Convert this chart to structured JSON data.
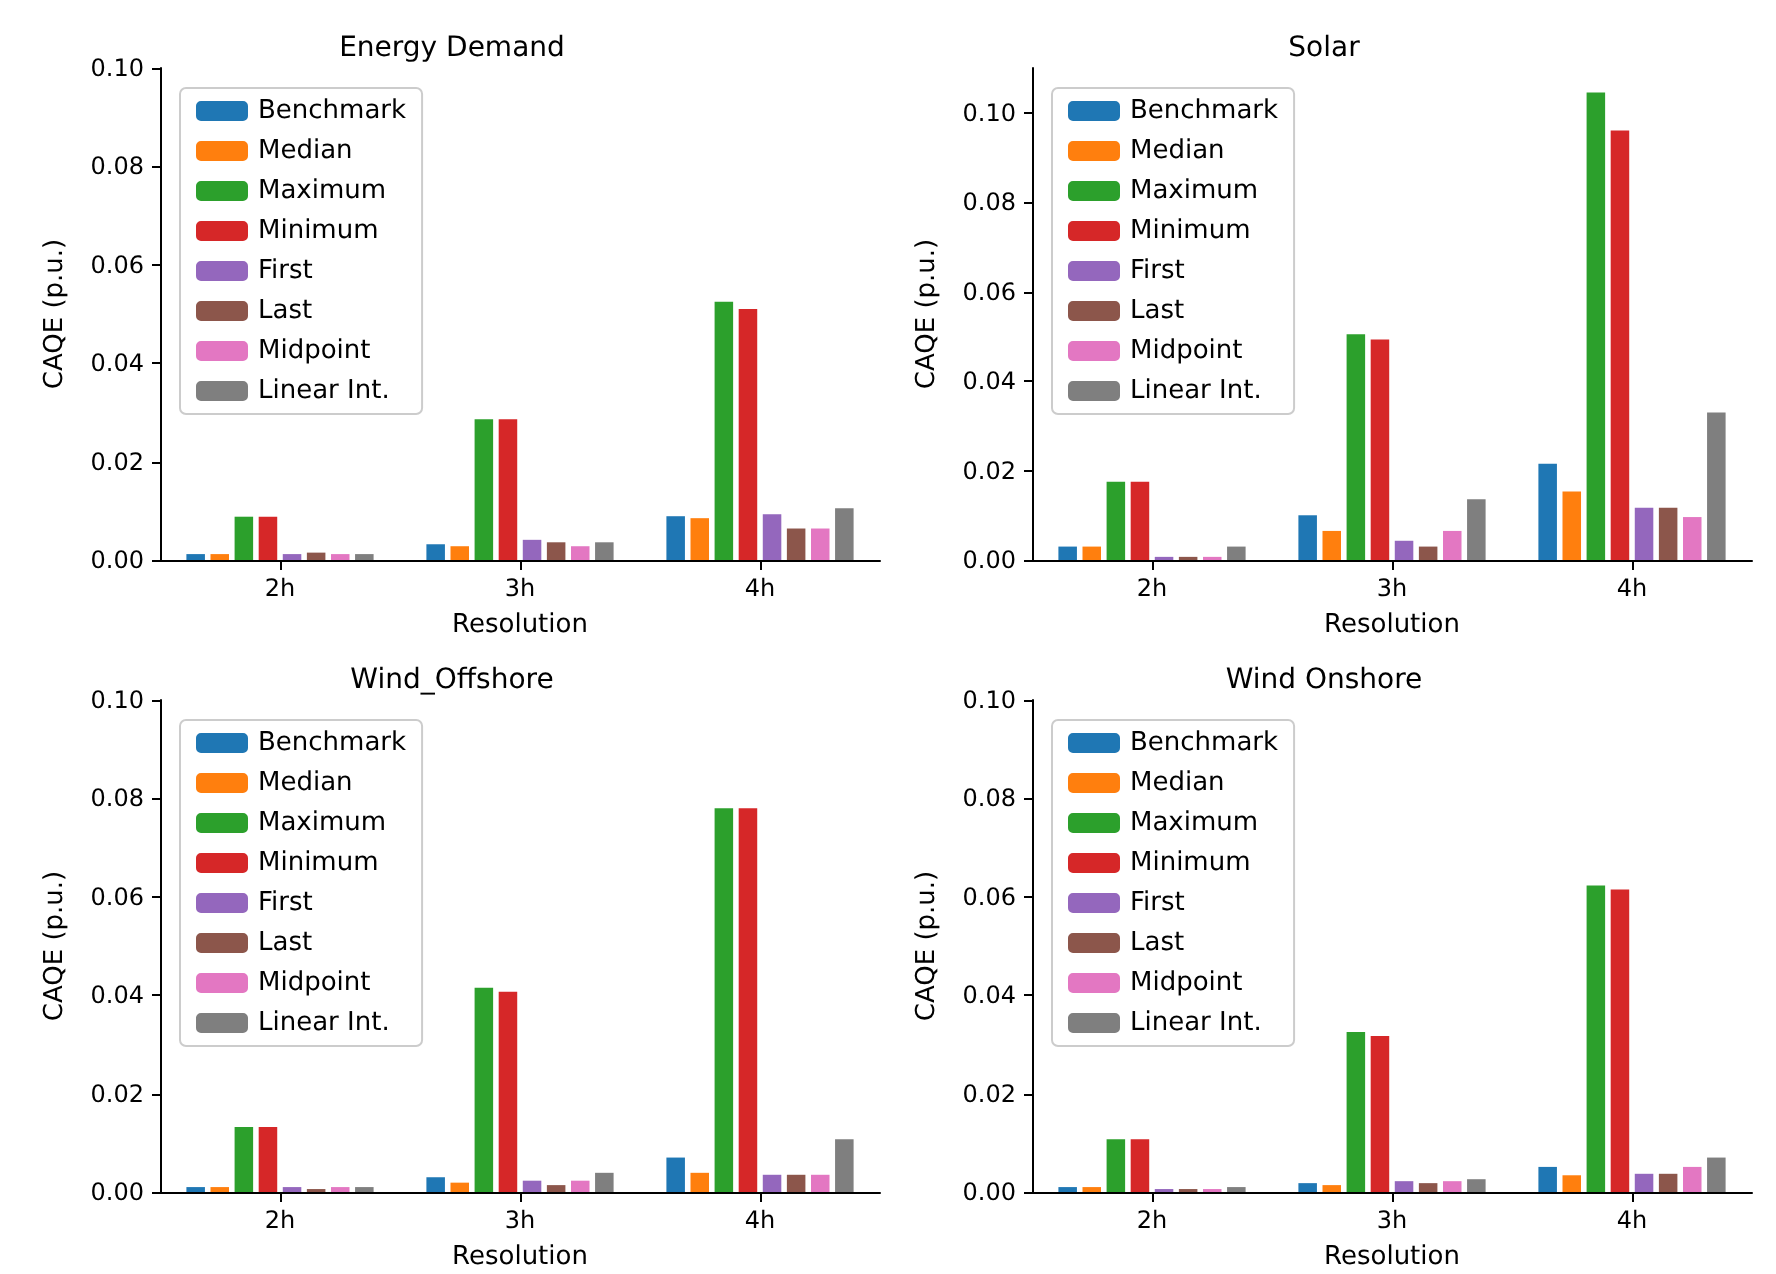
{
  "chart_data": [
    {
      "type": "bar",
      "title": "Energy Demand",
      "xlabel": "Resolution",
      "ylabel": "CAQE (p.u.)",
      "categories": [
        "2h",
        "3h",
        "4h"
      ],
      "ylim": [
        0,
        0.1
      ],
      "yticks": [
        {
          "value": 0,
          "label": "0.00"
        },
        {
          "value": 0.02,
          "label": "0.02"
        },
        {
          "value": 0.04,
          "label": "0.04"
        },
        {
          "value": 0.06,
          "label": "0.06"
        },
        {
          "value": 0.08,
          "label": "0.08"
        },
        {
          "value": 0.1,
          "label": "0.10"
        }
      ],
      "grid": false,
      "legend": "top left",
      "series": [
        {
          "name": "Benchmark",
          "color": "#1f77b4",
          "values": [
            0.0012,
            0.0032,
            0.0089
          ]
        },
        {
          "name": "Median",
          "color": "#ff7f0e",
          "values": [
            0.0012,
            0.0028,
            0.0085
          ]
        },
        {
          "name": "Maximum",
          "color": "#2ca02c",
          "values": [
            0.0088,
            0.0286,
            0.0525
          ]
        },
        {
          "name": "Minimum",
          "color": "#d62728",
          "values": [
            0.0088,
            0.0286,
            0.051
          ]
        },
        {
          "name": "First",
          "color": "#9467bd",
          "values": [
            0.0012,
            0.0041,
            0.0093
          ]
        },
        {
          "name": "Last",
          "color": "#8c564b",
          "values": [
            0.0015,
            0.0036,
            0.0064
          ]
        },
        {
          "name": "Midpoint",
          "color": "#e377c2",
          "values": [
            0.0012,
            0.0028,
            0.0064
          ]
        },
        {
          "name": "Linear Int.",
          "color": "#7f7f7f",
          "values": [
            0.0012,
            0.0036,
            0.0105
          ]
        }
      ]
    },
    {
      "type": "bar",
      "title": "Solar",
      "xlabel": "Resolution",
      "ylabel": "CAQE (p.u.)",
      "categories": [
        "2h",
        "3h",
        "4h"
      ],
      "ylim": [
        0,
        0.11
      ],
      "yticks": [
        {
          "value": 0,
          "label": "0.00"
        },
        {
          "value": 0.02,
          "label": "0.02"
        },
        {
          "value": 0.04,
          "label": "0.04"
        },
        {
          "value": 0.06,
          "label": "0.06"
        },
        {
          "value": 0.08,
          "label": "0.08"
        },
        {
          "value": 0.1,
          "label": "0.10"
        }
      ],
      "grid": false,
      "legend": "top left",
      "series": [
        {
          "name": "Benchmark",
          "color": "#1f77b4",
          "values": [
            0.003,
            0.01,
            0.0215
          ]
        },
        {
          "name": "Median",
          "color": "#ff7f0e",
          "values": [
            0.003,
            0.0065,
            0.0153
          ]
        },
        {
          "name": "Maximum",
          "color": "#2ca02c",
          "values": [
            0.0175,
            0.0505,
            0.1045
          ]
        },
        {
          "name": "Minimum",
          "color": "#d62728",
          "values": [
            0.0175,
            0.0493,
            0.096
          ]
        },
        {
          "name": "First",
          "color": "#9467bd",
          "values": [
            0.0007,
            0.0043,
            0.0117
          ]
        },
        {
          "name": "Last",
          "color": "#8c564b",
          "values": [
            0.0007,
            0.003,
            0.0117
          ]
        },
        {
          "name": "Midpoint",
          "color": "#e377c2",
          "values": [
            0.0007,
            0.0065,
            0.0096
          ]
        },
        {
          "name": "Linear Int.",
          "color": "#7f7f7f",
          "values": [
            0.003,
            0.0136,
            0.033
          ]
        }
      ]
    },
    {
      "type": "bar",
      "title": "Wind_Offshore",
      "xlabel": "Resolution",
      "ylabel": "CAQE (p.u.)",
      "categories": [
        "2h",
        "3h",
        "4h"
      ],
      "ylim": [
        0,
        0.1
      ],
      "yticks": [
        {
          "value": 0,
          "label": "0.00"
        },
        {
          "value": 0.02,
          "label": "0.02"
        },
        {
          "value": 0.04,
          "label": "0.04"
        },
        {
          "value": 0.06,
          "label": "0.06"
        },
        {
          "value": 0.08,
          "label": "0.08"
        },
        {
          "value": 0.1,
          "label": "0.10"
        }
      ],
      "grid": false,
      "legend": "top left",
      "series": [
        {
          "name": "Benchmark",
          "color": "#1f77b4",
          "values": [
            0.001,
            0.003,
            0.007
          ]
        },
        {
          "name": "Median",
          "color": "#ff7f0e",
          "values": [
            0.001,
            0.0019,
            0.0039
          ]
        },
        {
          "name": "Maximum",
          "color": "#2ca02c",
          "values": [
            0.0132,
            0.0415,
            0.078
          ]
        },
        {
          "name": "Minimum",
          "color": "#d62728",
          "values": [
            0.0132,
            0.0407,
            0.078
          ]
        },
        {
          "name": "First",
          "color": "#9467bd",
          "values": [
            0.001,
            0.0023,
            0.0035
          ]
        },
        {
          "name": "Last",
          "color": "#8c564b",
          "values": [
            0.0006,
            0.0014,
            0.0035
          ]
        },
        {
          "name": "Midpoint",
          "color": "#e377c2",
          "values": [
            0.001,
            0.0023,
            0.0035
          ]
        },
        {
          "name": "Linear Int.",
          "color": "#7f7f7f",
          "values": [
            0.001,
            0.0039,
            0.0107
          ]
        }
      ]
    },
    {
      "type": "bar",
      "title": "Wind Onshore",
      "xlabel": "Resolution",
      "ylabel": "CAQE (p.u.)",
      "categories": [
        "2h",
        "3h",
        "4h"
      ],
      "ylim": [
        0,
        0.1
      ],
      "yticks": [
        {
          "value": 0,
          "label": "0.00"
        },
        {
          "value": 0.02,
          "label": "0.02"
        },
        {
          "value": 0.04,
          "label": "0.04"
        },
        {
          "value": 0.06,
          "label": "0.06"
        },
        {
          "value": 0.08,
          "label": "0.08"
        },
        {
          "value": 0.1,
          "label": "0.10"
        }
      ],
      "grid": false,
      "legend": "top left",
      "series": [
        {
          "name": "Benchmark",
          "color": "#1f77b4",
          "values": [
            0.001,
            0.0018,
            0.0051
          ]
        },
        {
          "name": "Median",
          "color": "#ff7f0e",
          "values": [
            0.001,
            0.0014,
            0.0034
          ]
        },
        {
          "name": "Maximum",
          "color": "#2ca02c",
          "values": [
            0.0107,
            0.0325,
            0.0623
          ]
        },
        {
          "name": "Minimum",
          "color": "#d62728",
          "values": [
            0.0107,
            0.0317,
            0.0615
          ]
        },
        {
          "name": "First",
          "color": "#9467bd",
          "values": [
            0.0006,
            0.0022,
            0.0037
          ]
        },
        {
          "name": "Last",
          "color": "#8c564b",
          "values": [
            0.0006,
            0.0018,
            0.0037
          ]
        },
        {
          "name": "Midpoint",
          "color": "#e377c2",
          "values": [
            0.0006,
            0.0022,
            0.0051
          ]
        },
        {
          "name": "Linear Int.",
          "color": "#7f7f7f",
          "values": [
            0.001,
            0.0026,
            0.007
          ]
        }
      ]
    }
  ]
}
